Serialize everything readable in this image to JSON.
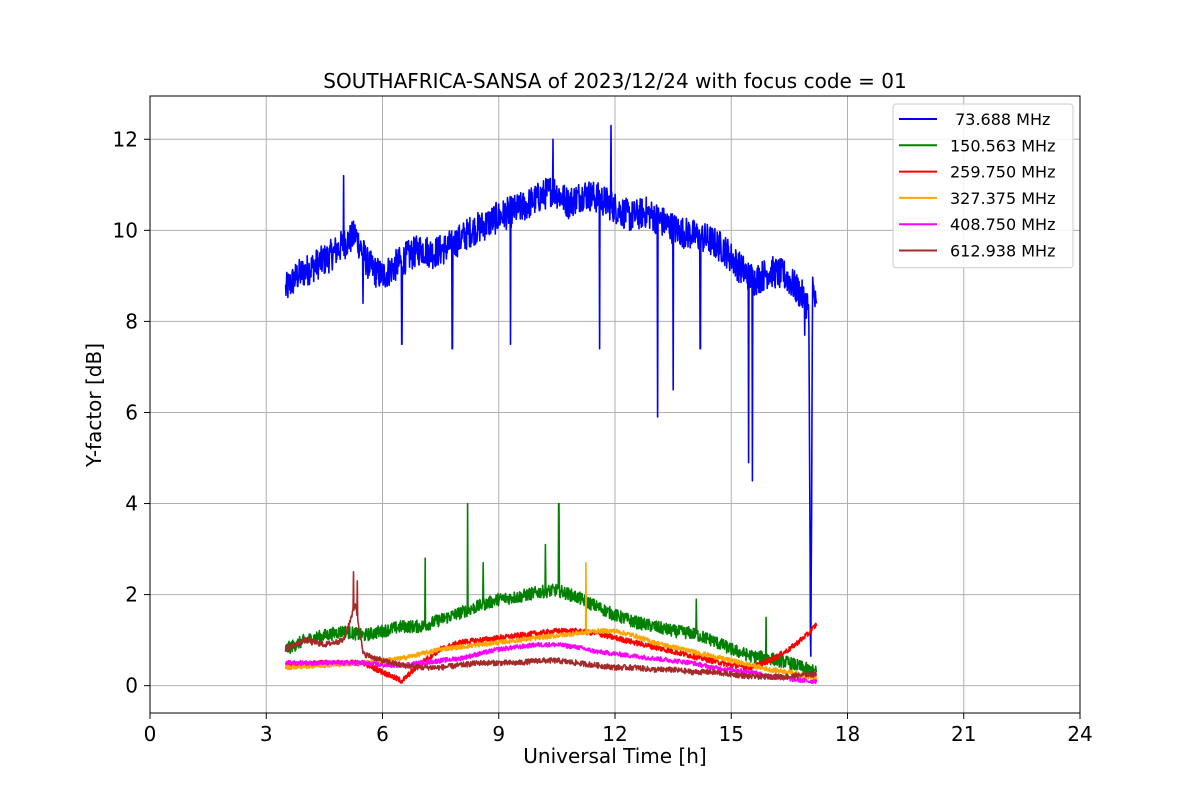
{
  "chart_data": {
    "type": "line",
    "title": "SOUTHAFRICA-SANSA of 2023/12/24 with focus code = 01",
    "xlabel": "Universal Time [h]",
    "ylabel": "Y-factor [dB]",
    "xlim": [
      0,
      24
    ],
    "ylim": [
      -0.6,
      12.95
    ],
    "xticks": [
      0,
      3,
      6,
      9,
      12,
      15,
      18,
      21,
      24
    ],
    "yticks": [
      0,
      2,
      4,
      6,
      8,
      10,
      12
    ],
    "grid": true,
    "legend_position": "top-right",
    "series": [
      {
        "name": " 73.688 MHz",
        "color": "#0000ff",
        "noise": 0.35,
        "x": [
          3.5,
          3.8,
          4.2,
          4.6,
          5.0,
          5.3,
          5.6,
          5.8,
          6.0,
          6.3,
          6.6,
          7.0,
          7.3,
          7.6,
          8.0,
          8.3,
          8.6,
          9.0,
          9.3,
          9.6,
          10.0,
          10.4,
          10.8,
          11.2,
          11.6,
          12.0,
          12.4,
          12.8,
          13.2,
          13.6,
          14.0,
          14.4,
          14.8,
          15.2,
          15.6,
          16.0,
          16.4,
          16.8,
          17.0,
          17.05,
          17.1,
          17.2
        ],
        "y": [
          8.7,
          9.0,
          9.2,
          9.4,
          9.7,
          9.9,
          9.3,
          9.1,
          9.0,
          9.2,
          9.4,
          9.6,
          9.5,
          9.6,
          9.8,
          10.0,
          10.1,
          10.3,
          10.4,
          10.5,
          10.7,
          10.9,
          10.6,
          10.8,
          10.7,
          10.5,
          10.3,
          10.4,
          10.2,
          10.0,
          9.9,
          9.8,
          9.6,
          9.2,
          8.9,
          9.1,
          9.0,
          8.6,
          8.3,
          0.1,
          8.8,
          8.2
        ]
      },
      {
        "name": "150.563 MHz",
        "color": "#008000",
        "noise": 0.14,
        "x": [
          3.5,
          4.0,
          4.5,
          5.0,
          5.5,
          6.0,
          6.5,
          7.0,
          7.5,
          8.0,
          8.5,
          9.0,
          9.5,
          10.0,
          10.5,
          11.0,
          11.5,
          12.0,
          12.5,
          13.0,
          13.5,
          14.0,
          14.5,
          15.0,
          15.5,
          16.0,
          16.5,
          17.0,
          17.2
        ],
        "y": [
          0.8,
          1.0,
          1.1,
          1.2,
          1.1,
          1.2,
          1.3,
          1.3,
          1.45,
          1.6,
          1.75,
          1.9,
          1.95,
          2.05,
          2.1,
          1.95,
          1.75,
          1.55,
          1.4,
          1.3,
          1.2,
          1.15,
          1.0,
          0.8,
          0.65,
          0.6,
          0.5,
          0.35,
          0.3
        ]
      },
      {
        "name": "259.750 MHz",
        "color": "#ff0000",
        "noise": 0.06,
        "x": [
          3.5,
          4.5,
          5.5,
          6.0,
          6.5,
          7.0,
          7.5,
          8.0,
          8.5,
          9.0,
          9.5,
          10.0,
          10.5,
          11.0,
          11.5,
          12.0,
          12.5,
          13.0,
          13.5,
          14.0,
          14.5,
          15.0,
          15.5,
          16.0,
          16.5,
          17.0,
          17.2
        ],
        "y": [
          0.45,
          0.5,
          0.5,
          0.3,
          0.1,
          0.5,
          0.8,
          0.95,
          1.0,
          1.05,
          1.1,
          1.15,
          1.2,
          1.2,
          1.15,
          1.05,
          0.95,
          0.85,
          0.75,
          0.65,
          0.55,
          0.45,
          0.4,
          0.55,
          0.8,
          1.15,
          1.35
        ]
      },
      {
        "name": "327.375 MHz",
        "color": "#ffa500",
        "noise": 0.05,
        "x": [
          3.5,
          4.5,
          5.5,
          6.0,
          6.5,
          7.0,
          7.5,
          8.0,
          8.5,
          9.0,
          9.5,
          10.0,
          10.5,
          11.0,
          11.5,
          12.0,
          12.5,
          13.0,
          13.5,
          14.0,
          14.5,
          15.0,
          15.5,
          16.0,
          16.5,
          17.0,
          17.2
        ],
        "y": [
          0.4,
          0.45,
          0.5,
          0.55,
          0.6,
          0.7,
          0.8,
          0.85,
          0.9,
          0.95,
          1.0,
          1.05,
          1.1,
          1.15,
          1.2,
          1.2,
          1.1,
          0.95,
          0.85,
          0.75,
          0.65,
          0.55,
          0.45,
          0.35,
          0.3,
          0.2,
          0.15
        ]
      },
      {
        "name": "408.750 MHz",
        "color": "#ff00ff",
        "noise": 0.05,
        "x": [
          3.5,
          4.5,
          5.5,
          6.0,
          6.5,
          7.0,
          7.5,
          8.0,
          8.5,
          9.0,
          9.5,
          10.0,
          10.5,
          11.0,
          11.5,
          12.0,
          12.5,
          13.0,
          13.5,
          14.0,
          14.5,
          15.0,
          15.5,
          16.0,
          16.5,
          17.0,
          17.2
        ],
        "y": [
          0.5,
          0.5,
          0.5,
          0.45,
          0.45,
          0.5,
          0.55,
          0.6,
          0.7,
          0.8,
          0.85,
          0.9,
          0.9,
          0.85,
          0.75,
          0.7,
          0.65,
          0.6,
          0.55,
          0.5,
          0.4,
          0.35,
          0.3,
          0.2,
          0.15,
          0.1,
          0.1
        ]
      },
      {
        "name": "612.938 MHz",
        "color": "#a52a2a",
        "noise": 0.06,
        "x": [
          3.5,
          4.0,
          4.5,
          5.0,
          5.3,
          5.5,
          6.0,
          6.5,
          7.0,
          7.5,
          8.0,
          8.5,
          9.0,
          9.5,
          10.0,
          10.5,
          11.0,
          11.5,
          12.0,
          12.5,
          13.0,
          13.5,
          14.0,
          14.5,
          15.0,
          15.5,
          16.0,
          16.5,
          17.0,
          17.2
        ],
        "y": [
          0.8,
          1.0,
          0.9,
          1.0,
          1.8,
          0.7,
          0.55,
          0.45,
          0.4,
          0.4,
          0.45,
          0.5,
          0.5,
          0.5,
          0.55,
          0.55,
          0.5,
          0.45,
          0.4,
          0.4,
          0.35,
          0.35,
          0.3,
          0.3,
          0.25,
          0.2,
          0.2,
          0.2,
          0.25,
          0.25
        ]
      }
    ],
    "spikes": [
      {
        "series": 0,
        "x": 5.0,
        "y": 11.2
      },
      {
        "series": 0,
        "x": 5.5,
        "y": 8.4
      },
      {
        "series": 0,
        "x": 6.5,
        "y": 7.5
      },
      {
        "series": 0,
        "x": 7.8,
        "y": 7.4
      },
      {
        "series": 0,
        "x": 9.3,
        "y": 7.5
      },
      {
        "series": 0,
        "x": 10.4,
        "y": 12.0
      },
      {
        "series": 0,
        "x": 11.6,
        "y": 7.4
      },
      {
        "series": 0,
        "x": 11.9,
        "y": 12.3
      },
      {
        "series": 0,
        "x": 13.1,
        "y": 5.9
      },
      {
        "series": 0,
        "x": 13.5,
        "y": 6.5
      },
      {
        "series": 0,
        "x": 14.2,
        "y": 7.4
      },
      {
        "series": 0,
        "x": 15.45,
        "y": 4.9
      },
      {
        "series": 0,
        "x": 15.55,
        "y": 4.5
      },
      {
        "series": 0,
        "x": 16.9,
        "y": 7.7
      },
      {
        "series": 1,
        "x": 7.1,
        "y": 2.8
      },
      {
        "series": 1,
        "x": 8.2,
        "y": 4.0
      },
      {
        "series": 1,
        "x": 8.6,
        "y": 2.7
      },
      {
        "series": 1,
        "x": 10.2,
        "y": 3.1
      },
      {
        "series": 1,
        "x": 10.55,
        "y": 4.0
      },
      {
        "series": 1,
        "x": 14.1,
        "y": 1.9
      },
      {
        "series": 1,
        "x": 15.9,
        "y": 1.5
      },
      {
        "series": 3,
        "x": 11.25,
        "y": 2.7
      },
      {
        "series": 5,
        "x": 5.25,
        "y": 2.5
      },
      {
        "series": 5,
        "x": 5.35,
        "y": 2.3
      }
    ]
  }
}
